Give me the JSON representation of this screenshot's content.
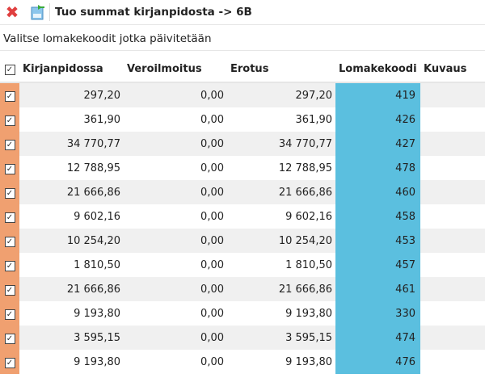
{
  "toolbar": {
    "title": "Tuo summat kirjanpidosta -> 6B",
    "close_icon": "close-icon",
    "import_icon": "import-icon"
  },
  "subtitle": "Valitse lomakekoodit jotka päivitetään",
  "columns": [
    "Kirjanpidossa",
    "Veroilmoitus",
    "Erotus",
    "Lomakekoodi",
    "Kuvaus"
  ],
  "check_mark": "✓",
  "colors": {
    "check_column": "#f0a070",
    "code_column": "#5bbfdf"
  },
  "rows": [
    {
      "k": "297,20",
      "v": "0,00",
      "e": "297,20",
      "code": "419",
      "desc": ""
    },
    {
      "k": "361,90",
      "v": "0,00",
      "e": "361,90",
      "code": "426",
      "desc": ""
    },
    {
      "k": "34 770,77",
      "v": "0,00",
      "e": "34 770,77",
      "code": "427",
      "desc": ""
    },
    {
      "k": "12 788,95",
      "v": "0,00",
      "e": "12 788,95",
      "code": "478",
      "desc": ""
    },
    {
      "k": "21 666,86",
      "v": "0,00",
      "e": "21 666,86",
      "code": "460",
      "desc": ""
    },
    {
      "k": "9 602,16",
      "v": "0,00",
      "e": "9 602,16",
      "code": "458",
      "desc": ""
    },
    {
      "k": "10 254,20",
      "v": "0,00",
      "e": "10 254,20",
      "code": "453",
      "desc": ""
    },
    {
      "k": "1 810,50",
      "v": "0,00",
      "e": "1 810,50",
      "code": "457",
      "desc": ""
    },
    {
      "k": "21 666,86",
      "v": "0,00",
      "e": "21 666,86",
      "code": "461",
      "desc": ""
    },
    {
      "k": "9 193,80",
      "v": "0,00",
      "e": "9 193,80",
      "code": "330",
      "desc": ""
    },
    {
      "k": "3 595,15",
      "v": "0,00",
      "e": "3 595,15",
      "code": "474",
      "desc": ""
    },
    {
      "k": "9 193,80",
      "v": "0,00",
      "e": "9 193,80",
      "code": "476",
      "desc": ""
    }
  ]
}
